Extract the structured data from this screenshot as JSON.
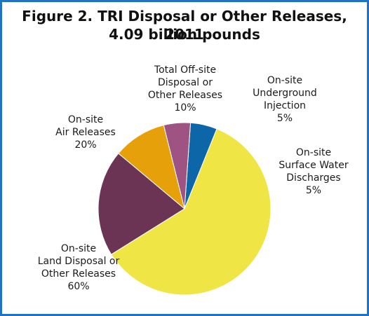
{
  "title": "Figure 2. TRI Disposal or Other Releases, 2011",
  "subtitle": "4.09 billion pounds",
  "colors": {
    "border": "#1f72c4",
    "land": "#efe645",
    "air": "#6b3354",
    "offsite": "#e6a00a",
    "underground": "#9e5382",
    "surface_water": "#0d66a7"
  },
  "chart_data": {
    "type": "pie",
    "title": "Figure 2. TRI Disposal or Other Releases, 2011",
    "subtitle": "4.09 billion pounds",
    "start_angle_deg": 68,
    "direction": "counterclockwise",
    "slices": [
      {
        "id": "surface_water",
        "lines": [
          "On-site",
          "Surface Water",
          "Discharges",
          "5%"
        ],
        "value": 5,
        "color": "#0d66a7"
      },
      {
        "id": "underground",
        "lines": [
          "On-site",
          "Underground",
          "Injection",
          "5%"
        ],
        "value": 5,
        "color": "#9e5382"
      },
      {
        "id": "offsite",
        "lines": [
          "Total Off-site",
          "Disposal or",
          "Other Releases",
          "10%"
        ],
        "value": 10,
        "color": "#e6a00a"
      },
      {
        "id": "air",
        "lines": [
          "On-site",
          "Air Releases",
          "20%"
        ],
        "value": 20,
        "color": "#6b3354"
      },
      {
        "id": "land",
        "lines": [
          "On-site",
          "Land Disposal or",
          "Other Releases",
          "60%"
        ],
        "value": 60,
        "color": "#efe645"
      }
    ]
  }
}
